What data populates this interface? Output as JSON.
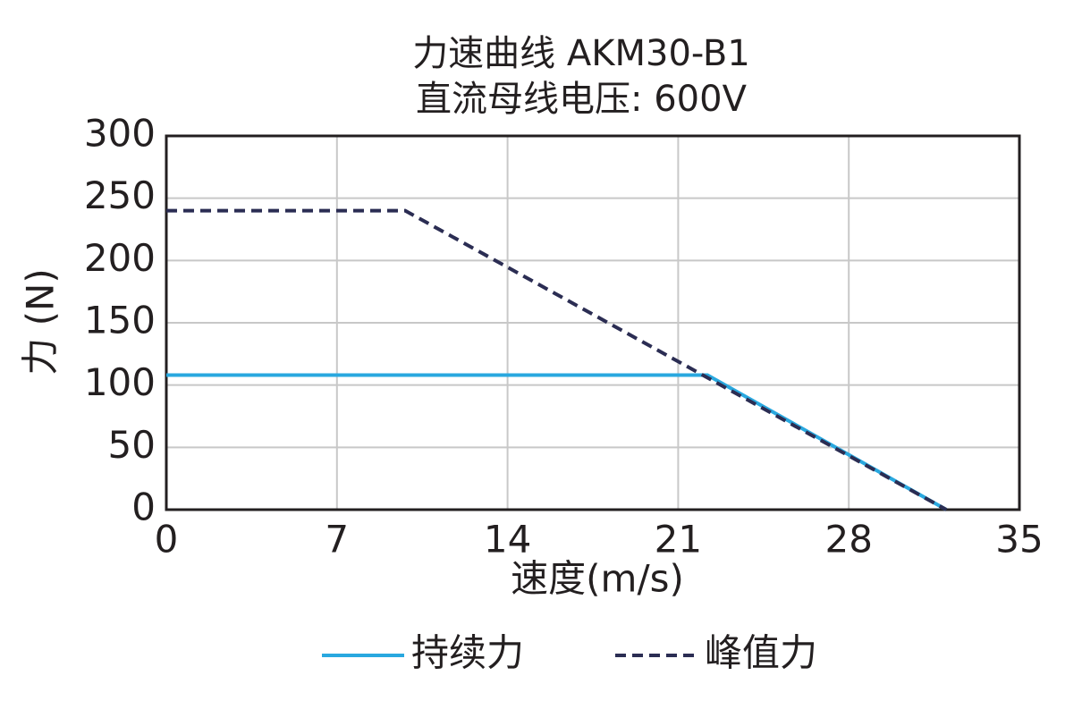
{
  "chart_data": {
    "type": "line",
    "title": "力速曲线 AKM30-B1",
    "subtitle": "直流母线电压: 600V",
    "x_label": "速度(m/s)",
    "y_label": "力 (N)",
    "xlim": [
      0,
      35
    ],
    "xticks": [
      0,
      7,
      14,
      21,
      28,
      35
    ],
    "ylim": [
      0,
      300
    ],
    "yticks": [
      0,
      50,
      100,
      150,
      200,
      250,
      300
    ],
    "grid": true,
    "legend": "bottom",
    "series": [
      {
        "name": "持续力",
        "color": "#29a8df",
        "dash": false,
        "x": [
          0,
          22.2,
          32
        ],
        "values": [
          108,
          108,
          0
        ]
      },
      {
        "name": "峰值力",
        "color": "#2b2d53",
        "dash": true,
        "x": [
          0,
          9.8,
          32
        ],
        "values": [
          240,
          240,
          0
        ]
      }
    ]
  }
}
